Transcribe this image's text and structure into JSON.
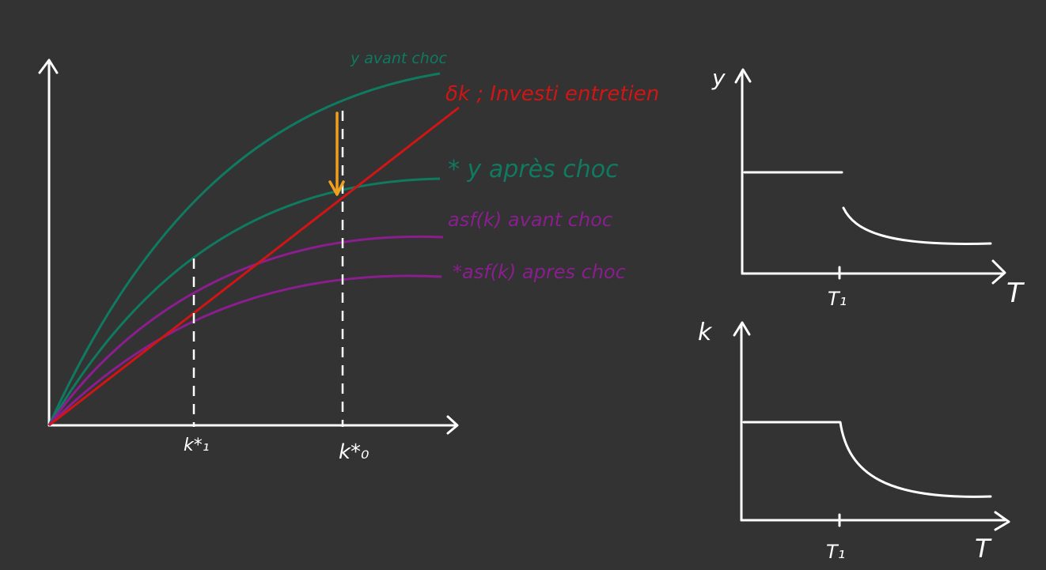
{
  "colors": {
    "background": "#333333",
    "axis": "#ffffff",
    "green": "#0f7a5f",
    "red": "#d01515",
    "purple": "#8a1e8e",
    "orange": "#f0a020"
  },
  "main_diagram": {
    "labels": {
      "y_before": "y avant choc",
      "depreciation": "δk ; Investi entretien",
      "y_after": "* y après choc",
      "asf_before": "asf(k) avant choc",
      "asf_after": "*asf(k) apres choc",
      "k1": "k*₁",
      "k0": "k*₀"
    }
  },
  "panel_y": {
    "y_axis_label": "y",
    "x_axis_label": "T",
    "tick_label": "T₁"
  },
  "panel_k": {
    "y_axis_label": "k",
    "x_axis_label": "T",
    "tick_label": "T₁"
  }
}
